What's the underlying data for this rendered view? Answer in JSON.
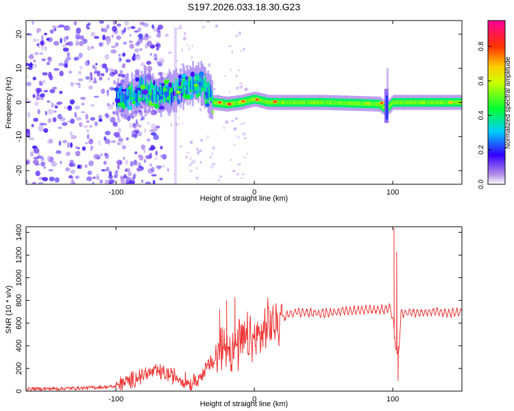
{
  "chart_data": [
    {
      "type": "heatmap",
      "title": "S197.2026.033.18.30.G23",
      "xlabel": "Height of straight line (km)",
      "ylabel": "Frequency (Hz)",
      "xlim": [
        -165,
        150
      ],
      "ylim": [
        -24,
        24
      ],
      "xticks": [
        -100,
        0,
        100
      ],
      "yticks": [
        -20,
        -10,
        0,
        10,
        20
      ],
      "colorbar": {
        "label": "Normalized spectral amplitude",
        "range": [
          0.0,
          0.95
        ],
        "ticks": [
          0.0,
          0.2,
          0.4,
          0.6,
          0.8
        ],
        "colormap": [
          "#ffffff",
          "#9370db",
          "#0000ff",
          "#00ffff",
          "#00ff00",
          "#ffff00",
          "#ff0000",
          "#ff00ff"
        ]
      },
      "trace": {
        "description": "frequency centroid (Hz) vs height (km)",
        "x": [
          -100,
          -90,
          -80,
          -70,
          -60,
          -50,
          -40,
          -35,
          -30,
          -20,
          -10,
          0,
          10,
          20,
          50,
          90,
          95,
          100,
          150
        ],
        "y": [
          1,
          2,
          4,
          2,
          3,
          5,
          6,
          4,
          0,
          -0.5,
          0,
          1,
          0,
          0,
          0,
          -0.5,
          -2,
          0,
          0
        ]
      },
      "hotspots": [
        {
          "x": -25,
          "y": 0,
          "v": 0.9
        },
        {
          "x": -18,
          "y": -0.5,
          "v": 0.95
        },
        {
          "x": -8,
          "y": 0.3,
          "v": 0.85
        },
        {
          "x": 2,
          "y": 0.8,
          "v": 0.9
        },
        {
          "x": 15,
          "y": 0.2,
          "v": 0.92
        },
        {
          "x": 82,
          "y": -0.3,
          "v": 0.7
        },
        {
          "x": 92,
          "y": -0.2,
          "v": 0.85
        },
        {
          "x": 142,
          "y": 0,
          "v": 0.75
        },
        {
          "x": -55,
          "y": 3,
          "v": 0.65
        },
        {
          "x": -42,
          "y": 5,
          "v": 0.6
        }
      ]
    },
    {
      "type": "line",
      "xlabel": "Height of straight line (km)",
      "ylabel": "SNR (10 * v/v)",
      "xlim": [
        -165,
        150
      ],
      "ylim": [
        0,
        1450
      ],
      "xticks": [
        -100,
        0,
        100
      ],
      "yticks": [
        0,
        200,
        400,
        600,
        800,
        1000,
        1200,
        1400
      ],
      "color": "#ee3333",
      "series": [
        {
          "name": "SNR",
          "x": [
            -165,
            -140,
            -120,
            -100,
            -90,
            -80,
            -70,
            -60,
            -50,
            -45,
            -40,
            -35,
            -30,
            -25,
            -20,
            -15,
            -10,
            -5,
            0,
            5,
            10,
            15,
            20,
            25,
            30,
            40,
            50,
            60,
            70,
            80,
            90,
            95,
            98,
            100,
            102,
            104,
            106,
            110,
            120,
            130,
            140,
            150
          ],
          "y": [
            20,
            22,
            30,
            40,
            90,
            150,
            170,
            140,
            90,
            70,
            110,
            200,
            260,
            340,
            420,
            380,
            420,
            440,
            440,
            500,
            560,
            600,
            640,
            680,
            700,
            690,
            690,
            700,
            710,
            720,
            720,
            720,
            740,
            650,
            400,
            300,
            680,
            690,
            690,
            700,
            690,
            700
          ],
          "spikes": [
            {
              "x": -25,
              "y": 720
            },
            {
              "x": -20,
              "y": 800
            },
            {
              "x": -14,
              "y": 830
            },
            {
              "x": 101,
              "y": 1440
            },
            {
              "x": 103,
              "y": 1230
            },
            {
              "x": 104,
              "y": 90
            }
          ]
        }
      ]
    }
  ]
}
